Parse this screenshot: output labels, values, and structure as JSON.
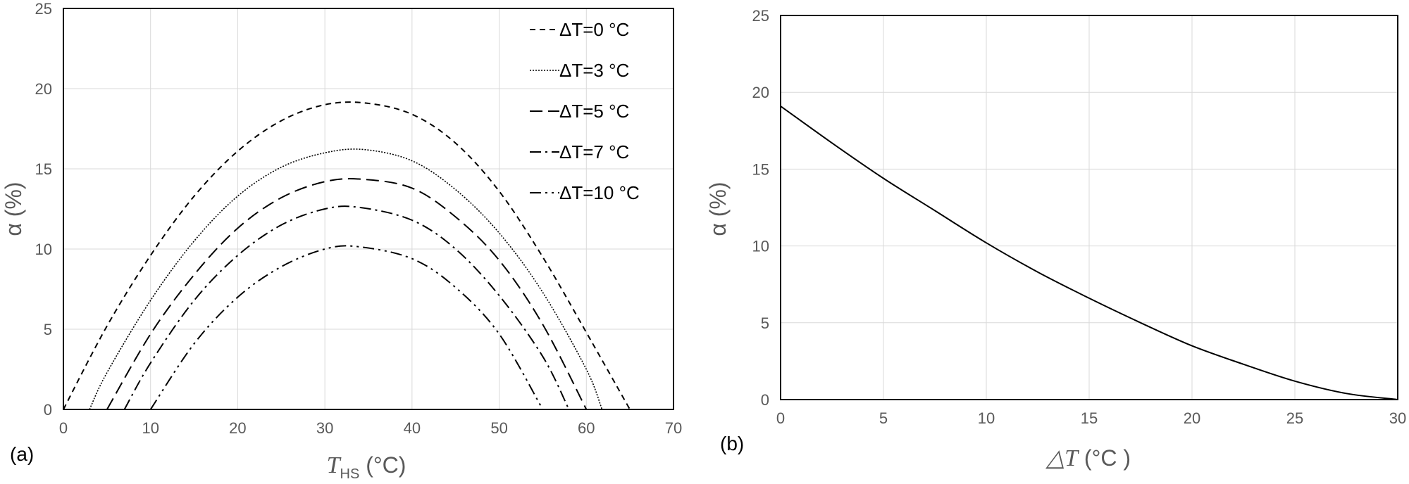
{
  "chart_data": [
    {
      "type": "line",
      "panel_label": "(a)",
      "xlabel_main": "T",
      "xlabel_sub": "HS",
      "xlabel_unit": " (°C)",
      "ylabel": "α (%)",
      "xlim": [
        0,
        70
      ],
      "ylim": [
        0,
        25
      ],
      "xticks": [
        "0",
        "10",
        "20",
        "30",
        "40",
        "50",
        "60",
        "70"
      ],
      "yticks": [
        "0",
        "5",
        "10",
        "15",
        "20",
        "25"
      ],
      "grid": true,
      "legend": "top-right",
      "series": [
        {
          "name": "ΔT=0 °C",
          "dash": "8,6",
          "x": [
            0,
            5,
            10,
            15,
            20,
            25,
            30,
            34.7,
            40,
            45,
            50,
            55,
            60,
            65
          ],
          "y": [
            0,
            5.2,
            9.6,
            13.3,
            16.1,
            18.0,
            19.0,
            19.1,
            18.4,
            16.6,
            13.6,
            9.5,
            4.8,
            0
          ]
        },
        {
          "name": "ΔT=3 °C",
          "dash": "2,2",
          "x": [
            3,
            5,
            10,
            15,
            20,
            25,
            30,
            34.5,
            40,
            45,
            50,
            55,
            60,
            61.8
          ],
          "y": [
            0,
            2.3,
            6.8,
            10.5,
            13.3,
            15.1,
            16.0,
            16.2,
            15.5,
            13.7,
            11.0,
            7.3,
            2.5,
            0
          ]
        },
        {
          "name": "ΔT=5 °C",
          "dash": "18,8",
          "x": [
            5,
            10,
            15,
            20,
            25,
            30,
            34.3,
            40,
            45,
            50,
            55,
            60
          ],
          "y": [
            0,
            4.7,
            8.4,
            11.3,
            13.2,
            14.2,
            14.35,
            13.8,
            12.0,
            9.3,
            5.3,
            0
          ]
        },
        {
          "name": "ΔT=7 °C",
          "dash": "16,6,3,6",
          "x": [
            7,
            10,
            15,
            20,
            25,
            30,
            33.9,
            40,
            45,
            50,
            55,
            58
          ],
          "y": [
            0,
            2.9,
            6.8,
            9.6,
            11.5,
            12.5,
            12.6,
            11.8,
            10.0,
            7.1,
            3.3,
            0
          ]
        },
        {
          "name": "ΔT=10 °C",
          "dash": "16,6,3,6,3,6",
          "x": [
            10,
            15,
            20,
            25,
            30,
            33.8,
            40,
            45,
            50,
            55
          ],
          "y": [
            0,
            4.1,
            7.0,
            8.9,
            10.0,
            10.15,
            9.4,
            7.6,
            4.7,
            0
          ]
        }
      ]
    },
    {
      "type": "line",
      "panel_label": "(b)",
      "xlabel_main": "△T",
      "xlabel_unit": "  (°C )",
      "ylabel": "α (%)",
      "xlim": [
        0,
        30
      ],
      "ylim": [
        0,
        25
      ],
      "xticks": [
        "0",
        "5",
        "10",
        "15",
        "20",
        "25",
        "30"
      ],
      "yticks": [
        "0",
        "5",
        "10",
        "15",
        "20",
        "25"
      ],
      "grid": true,
      "series": [
        {
          "x": [
            0,
            2.5,
            5,
            7.5,
            10,
            12.5,
            15,
            17.5,
            20,
            22.5,
            25,
            27.5,
            30
          ],
          "y": [
            19.1,
            16.7,
            14.4,
            12.3,
            10.2,
            8.3,
            6.6,
            5.0,
            3.5,
            2.3,
            1.2,
            0.4,
            0
          ]
        }
      ]
    }
  ]
}
